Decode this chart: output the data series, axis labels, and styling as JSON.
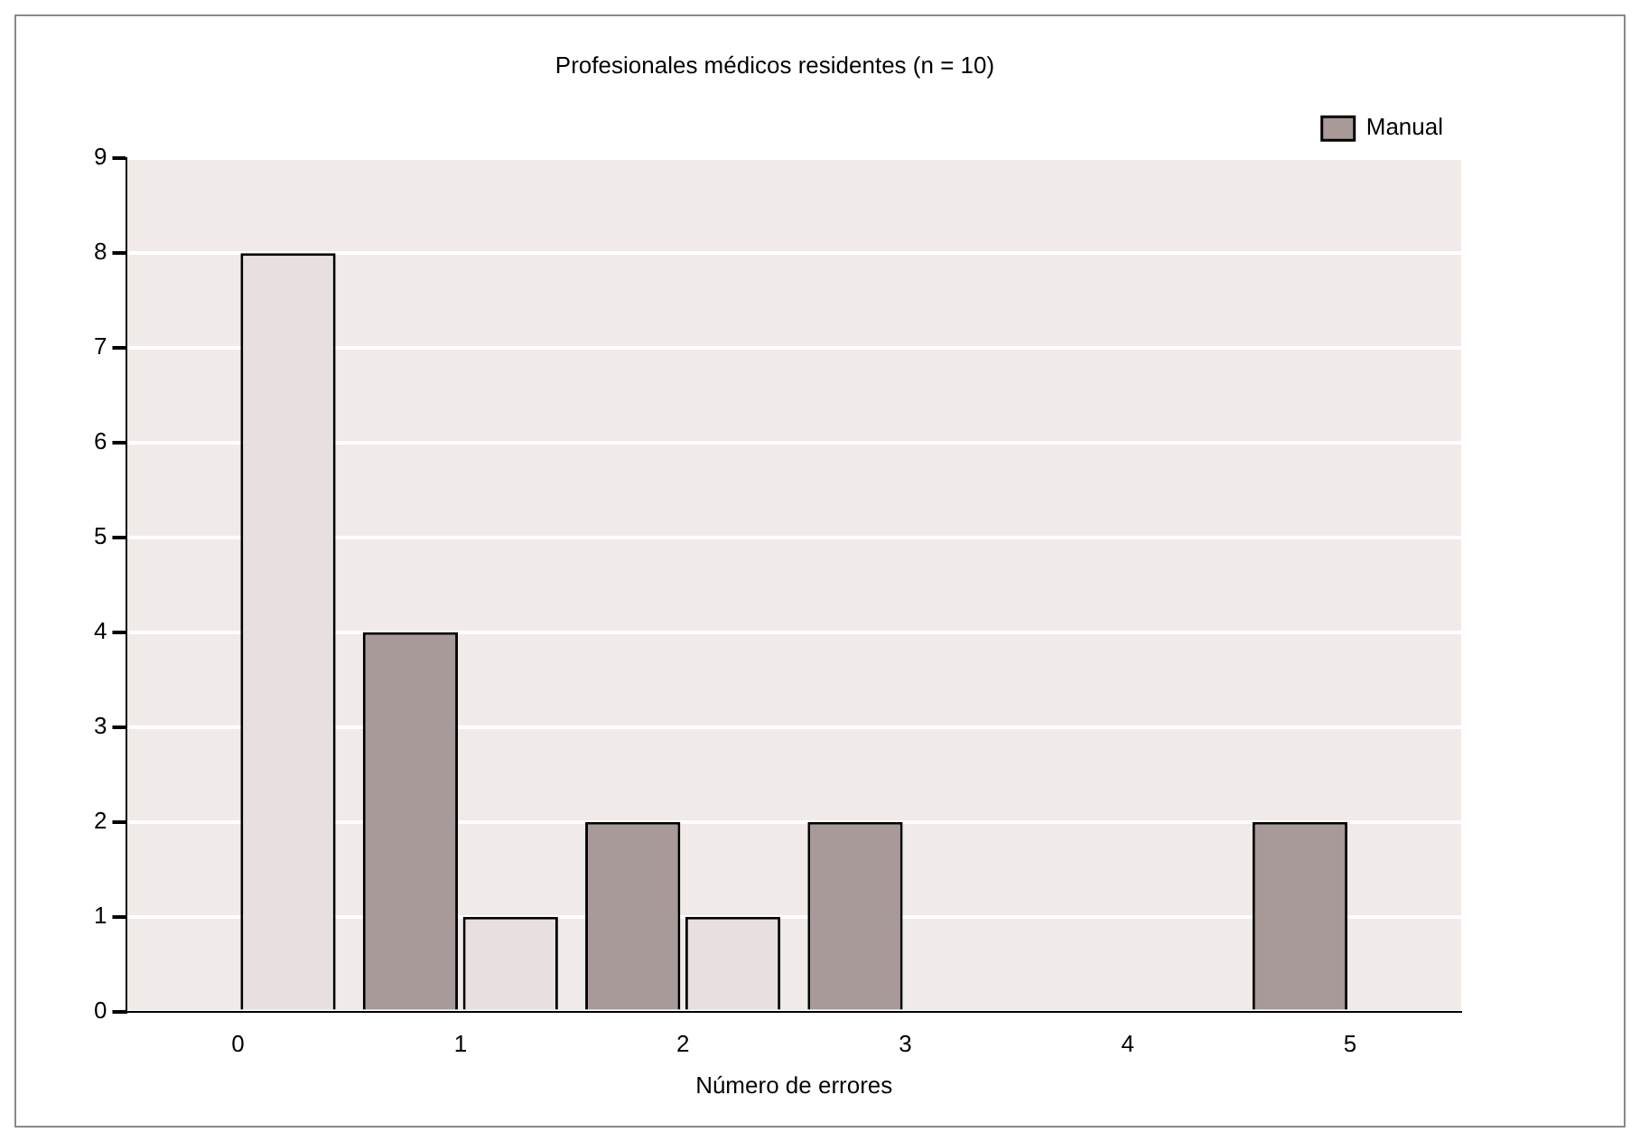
{
  "chart_data": {
    "type": "bar",
    "title": "Profesionales médicos residentes (n = 10)",
    "xlabel": "Número de errores",
    "categories": [
      "0",
      "1",
      "2",
      "3",
      "4",
      "5"
    ],
    "series": [
      {
        "name": "Manual",
        "color": "#a89a98",
        "values": [
          0,
          4,
          2,
          2,
          0,
          2
        ]
      },
      {
        "color": "#e8e0e0",
        "values": [
          8,
          1,
          1,
          0,
          0,
          0
        ]
      }
    ],
    "ylim": [
      0,
      9
    ],
    "yticks": [
      0,
      1,
      2,
      3,
      4,
      5,
      6,
      7,
      8,
      9
    ],
    "grid": "y",
    "legend": "top right"
  }
}
